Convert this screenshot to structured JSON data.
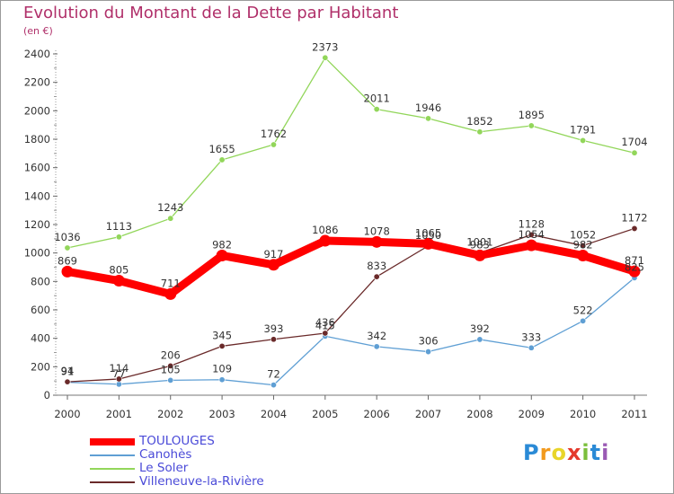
{
  "chart_data": {
    "type": "line",
    "title": "Evolution du Montant de la Dette par Habitant",
    "subtitle": "(en €)",
    "categories": [
      "2000",
      "2001",
      "2002",
      "2003",
      "2004",
      "2005",
      "2006",
      "2007",
      "2008",
      "2009",
      "2010",
      "2011"
    ],
    "ylim": [
      0,
      2400
    ],
    "yticks": [
      0,
      200,
      400,
      600,
      800,
      1000,
      1200,
      1400,
      1600,
      1800,
      2000,
      2200,
      2400
    ],
    "grid": false,
    "legend_position": "bottom-left",
    "series": [
      {
        "name": "TOULOUGES",
        "color": "#ff0000",
        "values": [
          869,
          805,
          711,
          982,
          917,
          1086,
          1078,
          1065,
          983,
          1054,
          982,
          871
        ]
      },
      {
        "name": "Canohès",
        "color": "#5f9fd4",
        "values": [
          91,
          77,
          105,
          109,
          72,
          415,
          342,
          306,
          392,
          333,
          522,
          825
        ]
      },
      {
        "name": "Le Soler",
        "color": "#92d65a",
        "values": [
          1036,
          1113,
          1243,
          1655,
          1762,
          2373,
          2011,
          1946,
          1852,
          1895,
          1791,
          1704
        ]
      },
      {
        "name": "Villeneuve-la-Rivière",
        "color": "#6a2a2a",
        "values": [
          94,
          114,
          206,
          345,
          393,
          436,
          833,
          1050,
          1001,
          1128,
          1052,
          1172
        ]
      }
    ]
  },
  "brand": {
    "letters": [
      "P",
      "r",
      "o",
      "x",
      "i",
      "t",
      "i"
    ],
    "colors": [
      "#2a8ad6",
      "#f29a1e",
      "#e8d52a",
      "#e4392b",
      "#7cbf3c",
      "#2a8ad6",
      "#9a5ab4"
    ]
  }
}
